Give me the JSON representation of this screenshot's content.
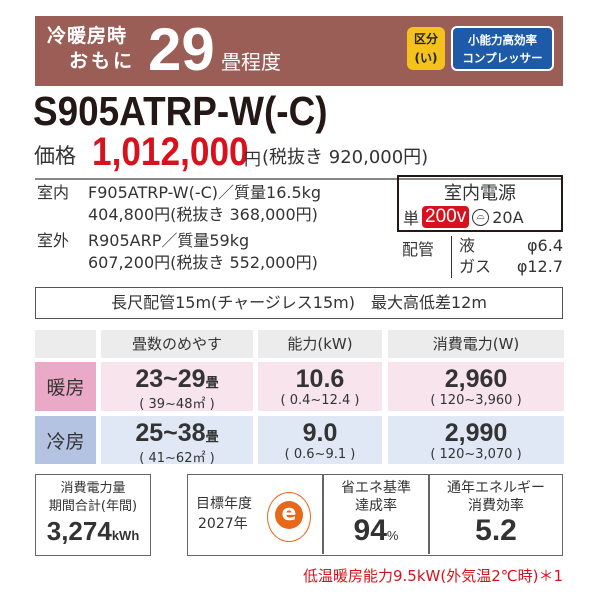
{
  "banner": {
    "line1": "冷暖房時",
    "line2": "おもに",
    "tatami": "29",
    "tatami_unit": "畳程度",
    "kubun": [
      "区分",
      "(い)"
    ],
    "compressor": [
      "小能力高効率",
      "コンプレッサー"
    ]
  },
  "model": "S905ATRP-W(-C)",
  "price": {
    "label": "価格",
    "value": "1,012,000",
    "yen": "円",
    "tax_excl": "(税抜き 920,000円)"
  },
  "indoor": {
    "label": "室内",
    "model": "F905ATRP-W(-C)／質量16.5kg",
    "price": "404,800円(税抜き 368,000円)"
  },
  "outdoor": {
    "label": "室外",
    "model": "R905ARP／質量59kg",
    "price": "607,200円(税抜き 552,000円)"
  },
  "power": {
    "title": "室内電源",
    "single": "単",
    "voltage": "200v",
    "plug_icon": "plug-icon",
    "ampere": "20A"
  },
  "piping": {
    "label": "配管",
    "liquid": "液",
    "liquid_size": "φ6.4",
    "gas": "ガス",
    "gas_size": "φ12.7"
  },
  "long_piping": "長尺配管15m(チャージレス15m)　最大高低差12m",
  "table": {
    "headers": [
      "畳数のめやす",
      "能力(kW)",
      "消費電力(W)"
    ],
    "rows": [
      {
        "label": "暖房",
        "tatami": "23~29",
        "tatami_unit": "畳",
        "area": "( 39~48㎡ )",
        "capacity": "10.6",
        "capacity_range": "( 0.4~12.4 )",
        "power": "2,960",
        "power_range": "( 120~3,960 )"
      },
      {
        "label": "冷房",
        "tatami": "25~38",
        "tatami_unit": "畳",
        "area": "( 41~62㎡ )",
        "capacity": "9.0",
        "capacity_range": "( 0.6~9.1 )",
        "power": "2,990",
        "power_range": "( 120~3,070 )"
      }
    ]
  },
  "annual": {
    "label1": "消費電力量",
    "label2": "期間合計(年間)",
    "value": "3,274",
    "unit": "kWh"
  },
  "target": {
    "label": "目標年度",
    "year": "2027年",
    "logo": "e"
  },
  "achievement": {
    "label1": "省エネ基準",
    "label2": "達成率",
    "value": "94",
    "unit": "%"
  },
  "apf": {
    "label1": "通年エネルギー",
    "label2": "消費効率",
    "value": "5.2"
  },
  "footnote": "低温暖房能力9.5kW(外気温2℃時)＊1",
  "colors": {
    "banner": "#9b5e57",
    "red": "#d8121c",
    "heat_label": "#eaa9c6",
    "heat_cell": "#f8e4ec",
    "cool_label": "#b4c3e2",
    "cool_cell": "#dfe8f4",
    "kubun": "#f4c21b",
    "compressor": "#1d5ba8",
    "eco_orange": "#e8681a"
  }
}
